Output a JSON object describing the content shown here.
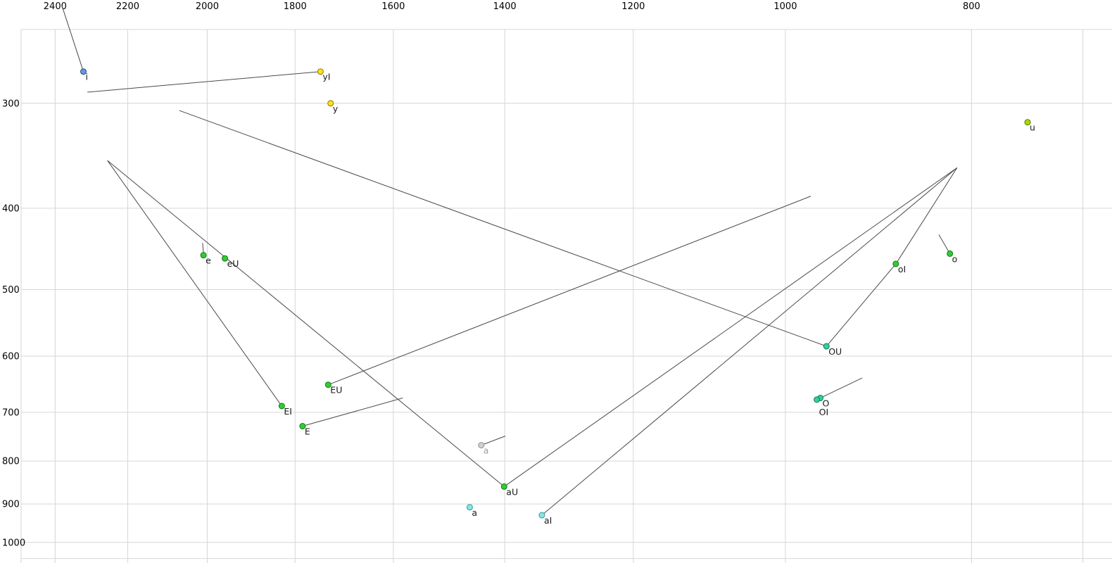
{
  "chart_data": {
    "type": "scatter",
    "title": "",
    "description": "Vowel formant plot: F2 (Hz, log scale, reversed) across top axis, F1 (Hz, log scale) down left axis, vowel tokens as colored dots with labels and thin diphthong trajectory lines",
    "x_axis": {
      "scale": "log",
      "reversed": true,
      "left_value": 2564,
      "right_value": 676,
      "ticks": [
        2400,
        2200,
        2000,
        1800,
        1600,
        1400,
        1200,
        1000,
        800
      ],
      "tick_labels": [
        "2400",
        "2200",
        "2000",
        "1800",
        "1600",
        "1400",
        "1200",
        "1000",
        "800"
      ],
      "extra_gridlines": [
        2500,
        700
      ]
    },
    "y_axis": {
      "scale": "log",
      "top_value": 226,
      "bottom_value": 1058,
      "ticks": [
        300,
        400,
        500,
        600,
        700,
        800,
        900,
        1000
      ],
      "tick_labels": [
        "300",
        "400",
        "500",
        "600",
        "700",
        "800",
        "900",
        "1000"
      ],
      "extra_gridlines": [
        245,
        1045
      ]
    },
    "points": [
      {
        "label": "i",
        "f2": 2320,
        "f1": 275,
        "color": "blue"
      },
      {
        "label": "yI",
        "f2": 1746,
        "f1": 275,
        "color": "yellow"
      },
      {
        "label": "y",
        "f2": 1725,
        "f1": 300,
        "color": "yellow"
      },
      {
        "label": "u",
        "f2": 748,
        "f1": 316,
        "color": "yellowgreen"
      },
      {
        "label": "e",
        "f2": 2009,
        "f1": 455,
        "color": "green"
      },
      {
        "label": "eU",
        "f2": 1958,
        "f1": 459,
        "color": "green"
      },
      {
        "label": "o",
        "f2": 821,
        "f1": 453,
        "color": "green"
      },
      {
        "label": "oI",
        "f2": 876,
        "f1": 466,
        "color": "green"
      },
      {
        "label": "OU",
        "f2": 952,
        "f1": 584,
        "color": "teal"
      },
      {
        "label": "EU",
        "f2": 1730,
        "f1": 649,
        "color": "green"
      },
      {
        "label": "EI",
        "f2": 1829,
        "f1": 688,
        "color": "green"
      },
      {
        "label": "E",
        "f2": 1784,
        "f1": 727,
        "color": "green"
      },
      {
        "label": "O",
        "f2": 959,
        "f1": 673,
        "color": "teal"
      },
      {
        "label": "OI",
        "f2": 963,
        "f1": 676,
        "color": "teal",
        "label_dy": 22
      },
      {
        "label": "a",
        "f2": 1440,
        "f1": 766,
        "color": "gray",
        "muted": true
      },
      {
        "label": "aU",
        "f2": 1401,
        "f1": 858,
        "color": "green"
      },
      {
        "label": "a",
        "f2": 1460,
        "f1": 908,
        "color": "cyan"
      },
      {
        "label": "aI",
        "f2": 1339,
        "f1": 928,
        "color": "cyan"
      }
    ],
    "trajectories_f2f1": [
      [
        2380,
        230,
        2320,
        275
      ],
      [
        2309,
        291,
        1746,
        275
      ],
      [
        2068,
        306,
        952,
        584
      ],
      [
        2254,
        351,
        1829,
        688
      ],
      [
        2254,
        351,
        1401,
        858
      ],
      [
        1730,
        649,
        970,
        387
      ],
      [
        1784,
        727,
        1582,
        673
      ],
      [
        1401,
        858,
        814,
        358
      ],
      [
        1339,
        928,
        814,
        358
      ],
      [
        814,
        358,
        876,
        466
      ],
      [
        876,
        466,
        952,
        584
      ],
      [
        832,
        430,
        821,
        453
      ],
      [
        1440,
        766,
        1399,
        747
      ],
      [
        2011,
        440,
        2009,
        453
      ],
      [
        959,
        673,
        912,
        637
      ]
    ],
    "style": {
      "background": "#ffffff",
      "grid_color": "#d6d6d6",
      "trajectory_color": "#4a4a4a",
      "axis_text_color": "#000000",
      "point_label_color": "#1a1a1a",
      "muted_label_color": "#9f9f9f",
      "point_radius": 4,
      "colors": {
        "blue": {
          "fill": "#6699dd",
          "stroke": "#29497c"
        },
        "yellow": {
          "fill": "#ffe01a",
          "stroke": "#8f7a00"
        },
        "yellowgreen": {
          "fill": "#a8d900",
          "stroke": "#557500"
        },
        "green": {
          "fill": "#33cc33",
          "stroke": "#0e7a12"
        },
        "teal": {
          "fill": "#35cf9e",
          "stroke": "#0d7a58"
        },
        "cyan": {
          "fill": "#86e6e0",
          "stroke": "#2f9ba0"
        },
        "gray": {
          "fill": "#cfcfcf",
          "stroke": "#8f8f8f"
        }
      }
    }
  }
}
